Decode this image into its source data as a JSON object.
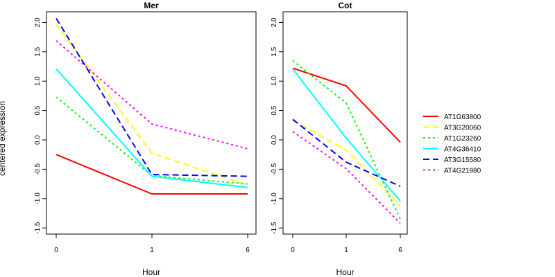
{
  "chart_data": {
    "type": "line",
    "ylabel": "centered expression",
    "x_ticks": [
      "0",
      "1",
      "6"
    ],
    "y_ticks": [
      "-1.5",
      "-1.0",
      "-0.5",
      "0.0",
      "0.5",
      "1.0",
      "1.5",
      "2.0"
    ],
    "ylim": [
      -1.55,
      2.1
    ],
    "legend_position": "right",
    "panels": [
      {
        "title": "Mer",
        "xlabel": "Hour",
        "x": [
          "0",
          "1",
          "6"
        ],
        "series": [
          {
            "name": "AT1G63800",
            "color": "#ff0000",
            "dash": "solid",
            "values": [
              -0.25,
              -0.92,
              -0.92
            ]
          },
          {
            "name": "AT3G20060",
            "color": "#ffff00",
            "dash": "dashed",
            "values": [
              1.97,
              -0.23,
              -0.77
            ]
          },
          {
            "name": "AT1G23260",
            "color": "#00ff00",
            "dash": "dotted",
            "values": [
              0.73,
              -0.61,
              -0.75
            ]
          },
          {
            "name": "AT4G36410",
            "color": "#00ffff",
            "dash": "solid",
            "values": [
              1.21,
              -0.62,
              -0.81
            ]
          },
          {
            "name": "AT3G15580",
            "color": "#0000ff",
            "dash": "dashed",
            "values": [
              2.07,
              -0.59,
              -0.62
            ]
          },
          {
            "name": "AT4G21980",
            "color": "#ff00ff",
            "dash": "dotted",
            "values": [
              1.69,
              0.27,
              -0.15
            ]
          }
        ]
      },
      {
        "title": "Cot",
        "xlabel": "Hour",
        "x": [
          "0",
          "1",
          "6"
        ],
        "series": [
          {
            "name": "AT1G63800",
            "color": "#ff0000",
            "dash": "solid",
            "values": [
              1.22,
              0.92,
              -0.04
            ]
          },
          {
            "name": "AT3G20060",
            "color": "#ffff00",
            "dash": "dashed",
            "values": [
              0.33,
              -0.17,
              -1.12
            ]
          },
          {
            "name": "AT1G23260",
            "color": "#00ff00",
            "dash": "dotted",
            "values": [
              1.35,
              0.63,
              -1.35
            ]
          },
          {
            "name": "AT4G36410",
            "color": "#00ffff",
            "dash": "solid",
            "values": [
              1.21,
              0.03,
              -1.04
            ]
          },
          {
            "name": "AT3G15580",
            "color": "#0000ff",
            "dash": "dashed",
            "values": [
              0.35,
              -0.38,
              -0.79
            ]
          },
          {
            "name": "AT4G21980",
            "color": "#ff00ff",
            "dash": "dotted",
            "values": [
              0.14,
              -0.49,
              -1.42
            ]
          }
        ]
      }
    ]
  }
}
